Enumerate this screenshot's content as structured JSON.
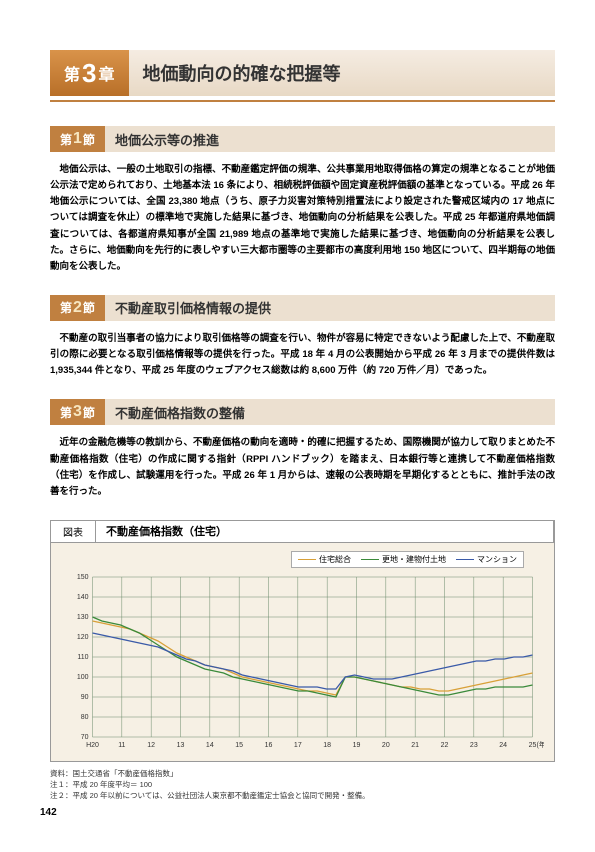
{
  "chapter": {
    "prefix": "第",
    "number": "3",
    "suffix": "章",
    "title": "地価動向の的確な把握等"
  },
  "sections": [
    {
      "label_prefix": "第",
      "label_number": "1",
      "label_suffix": "節",
      "title": "地価公示等の推進",
      "body": "地価公示は、一般の土地取引の指標、不動産鑑定評価の規準、公共事業用地取得価格の算定の規準となることが地価公示法で定められており、土地基本法 16 条により、相続税評価額や固定資産税評価額の基準となっている。平成 26 年地価公示については、全国 23,380 地点（うち、原子力災害対策特別措置法により設定された警戒区域内の 17 地点については調査を休止）の標準地で実施した結果に基づき、地価動向の分析結果を公表した。平成 25 年都道府県地価調査については、各都道府県知事が全国 21,989 地点の基準地で実施した結果に基づき、地価動向の分析結果を公表した。さらに、地価動向を先行的に表しやすい三大都市圏等の主要都市の高度利用地 150 地区について、四半期毎の地価動向を公表した。"
    },
    {
      "label_prefix": "第",
      "label_number": "2",
      "label_suffix": "節",
      "title": "不動産取引価格情報の提供",
      "body": "不動産の取引当事者の協力により取引価格等の調査を行い、物件が容易に特定できないよう配慮した上で、不動産取引の際に必要となる取引価格情報等の提供を行った。平成 18 年 4 月の公表開始から平成 26 年 3 月までの提供件数は 1,935,344 件となり、平成 25 年度のウェブアクセス総数は約 8,600 万件（約 720 万件／月）であった。"
    },
    {
      "label_prefix": "第",
      "label_number": "3",
      "label_suffix": "節",
      "title": "不動産価格指数の整備",
      "body": "近年の金融危機等の教訓から、不動産価格の動向を適時・的確に把握するため、国際機関が協力して取りまとめた不動産価格指数（住宅）の作成に関する指針（RPPI ハンドブック）を踏まえ、日本銀行等と連携して不動産価格指数（住宅）を作成し、試験運用を行った。平成 26 年 1 月からは、速報の公表時期を早期化するとともに、推計手法の改善を行った。"
    }
  ],
  "chart": {
    "label": "図表",
    "title": "不動産価格指数（住宅）",
    "type": "line",
    "background_color": "#f6f0e4",
    "grid_color": "#6a8a6a",
    "ylim": [
      70,
      150
    ],
    "ytick_step": 10,
    "yticks": [
      70,
      80,
      90,
      100,
      110,
      120,
      130,
      140,
      150
    ],
    "xticks": [
      "H20",
      "11",
      "12",
      "13",
      "14",
      "15",
      "16",
      "17",
      "18",
      "19",
      "20",
      "21",
      "22",
      "23",
      "24",
      "25"
    ],
    "xlabel_right": "(年)",
    "legend": [
      {
        "label": "住宅総合",
        "color": "#d8a038"
      },
      {
        "label": "更地・建物付土地",
        "color": "#3a8a3a"
      },
      {
        "label": "マンション",
        "color": "#3a5aa8"
      }
    ],
    "series": {
      "juutaku": {
        "color": "#d8a038",
        "values": [
          128,
          127,
          126,
          125,
          124,
          122,
          120,
          118,
          115,
          112,
          110,
          108,
          106,
          105,
          104,
          102,
          100,
          99,
          98,
          97,
          96,
          95,
          94,
          93,
          93,
          92,
          91,
          100,
          100,
          99,
          98,
          97,
          96,
          95,
          95,
          94,
          94,
          93,
          93,
          94,
          95,
          96,
          97,
          98,
          99,
          100,
          101,
          102
        ]
      },
      "sarachi": {
        "color": "#3a8a3a",
        "values": [
          130,
          128,
          127,
          126,
          124,
          122,
          119,
          116,
          113,
          110,
          108,
          106,
          104,
          103,
          102,
          100,
          99,
          98,
          97,
          96,
          95,
          94,
          93,
          93,
          92,
          91,
          90,
          100,
          100,
          99,
          98,
          97,
          96,
          95,
          94,
          93,
          92,
          91,
          91,
          92,
          93,
          94,
          94,
          95,
          95,
          95,
          95,
          96
        ]
      },
      "mansion": {
        "color": "#3a5aa8",
        "values": [
          122,
          121,
          120,
          119,
          118,
          117,
          116,
          115,
          113,
          111,
          109,
          108,
          106,
          105,
          104,
          103,
          101,
          100,
          99,
          98,
          97,
          96,
          95,
          95,
          95,
          94,
          94,
          100,
          101,
          100,
          99,
          99,
          99,
          100,
          101,
          102,
          103,
          104,
          105,
          106,
          107,
          108,
          108,
          109,
          109,
          110,
          110,
          111
        ]
      }
    }
  },
  "notes": [
    "資料：国土交通省「不動産価格指数」",
    "注１：平成 20 年度平均＝ 100",
    "注２：平成 20 年以前については、公益社団法人東京都不動産鑑定士協会と協同で開発・整備。"
  ],
  "page_number": "142"
}
